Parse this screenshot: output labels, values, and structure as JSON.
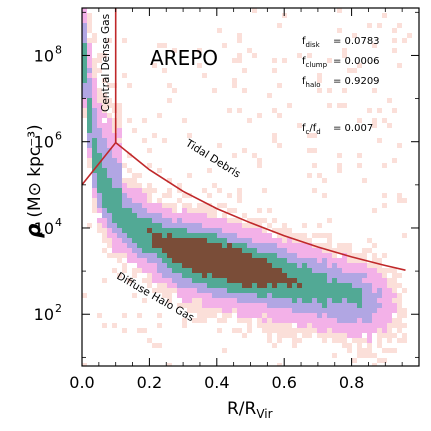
{
  "chart_data": {
    "type": "heatmap",
    "title": "AREPO",
    "xlabel": "R/R",
    "xlabel_sub": "Vir",
    "ylabel_symbol": "ρ",
    "ylabel_units": "(M⊙ kpc⁻³)",
    "x_ticks": [
      {
        "value": 0.0,
        "label": "0.0"
      },
      {
        "value": 0.2,
        "label": "0.2"
      },
      {
        "value": 0.4,
        "label": "0.4"
      },
      {
        "value": 0.6,
        "label": "0.6"
      },
      {
        "value": 0.8,
        "label": "0.8"
      }
    ],
    "y_ticks": [
      {
        "value": 2,
        "label": "10",
        "exp": "2"
      },
      {
        "value": 4,
        "label": "10",
        "exp": "4"
      },
      {
        "value": 6,
        "label": "10",
        "exp": "6"
      },
      {
        "value": 8,
        "label": "10",
        "exp": "8"
      }
    ],
    "xlim": [
      0.0,
      1.0
    ],
    "ylim_log10": [
      0.8,
      9.1
    ],
    "y_scale": "log",
    "grid": false,
    "legend": "none",
    "stats": [
      {
        "label": "f",
        "sub": "disk",
        "value": "= 0.0783"
      },
      {
        "label": "f",
        "sub": "clump",
        "value": "= 0.0006"
      },
      {
        "label": "f",
        "sub": "halo",
        "value": "= 0.9209"
      }
    ],
    "ratio": {
      "a": "f",
      "a_sub": "c",
      "b": "f",
      "b_sub": "d",
      "value": "= 0.007"
    },
    "regions": [
      {
        "name": "Central Dense Gas",
        "text": "Central Dense Gas"
      },
      {
        "name": "Tidal Debris",
        "text": "Tidal Debris"
      },
      {
        "name": "Diffuse Halo Gas",
        "text": "Diffuse Halo Gas"
      }
    ],
    "boundary_lines": [
      {
        "name": "cut-x",
        "points": [
          [
            0.1,
            5.98
          ],
          [
            0.1,
            9.1
          ]
        ]
      },
      {
        "name": "central-cut",
        "points": [
          [
            0.0,
            5.0
          ],
          [
            0.1,
            5.98
          ]
        ]
      },
      {
        "name": "tidal-cut",
        "points": [
          [
            0.1,
            5.98
          ],
          [
            0.2,
            5.35
          ],
          [
            0.3,
            4.85
          ],
          [
            0.4,
            4.45
          ],
          [
            0.5,
            4.12
          ],
          [
            0.6,
            3.82
          ],
          [
            0.7,
            3.56
          ],
          [
            0.8,
            3.33
          ],
          [
            0.9,
            3.13
          ],
          [
            0.96,
            3.02
          ]
        ]
      }
    ],
    "density_ridge": [
      [
        0.0,
        8.2
      ],
      [
        0.02,
        6.5
      ],
      [
        0.04,
        5.4
      ],
      [
        0.06,
        4.9
      ],
      [
        0.08,
        4.6
      ],
      [
        0.1,
        4.4
      ],
      [
        0.15,
        4.05
      ],
      [
        0.2,
        3.8
      ],
      [
        0.25,
        3.6
      ],
      [
        0.3,
        3.45
      ],
      [
        0.35,
        3.35
      ],
      [
        0.4,
        3.25
      ],
      [
        0.45,
        3.15
      ],
      [
        0.5,
        3.05
      ],
      [
        0.55,
        2.95
      ],
      [
        0.6,
        2.85
      ],
      [
        0.65,
        2.75
      ],
      [
        0.7,
        2.65
      ],
      [
        0.75,
        2.55
      ],
      [
        0.8,
        2.45
      ]
    ],
    "density_colors": {
      "lowest": "#fad4cc",
      "low": "#f2a8e6",
      "mid": "#a89ce0",
      "high": "#3fa08a",
      "peak": "#6b3a22"
    },
    "boundary_color": "#c0282a"
  }
}
